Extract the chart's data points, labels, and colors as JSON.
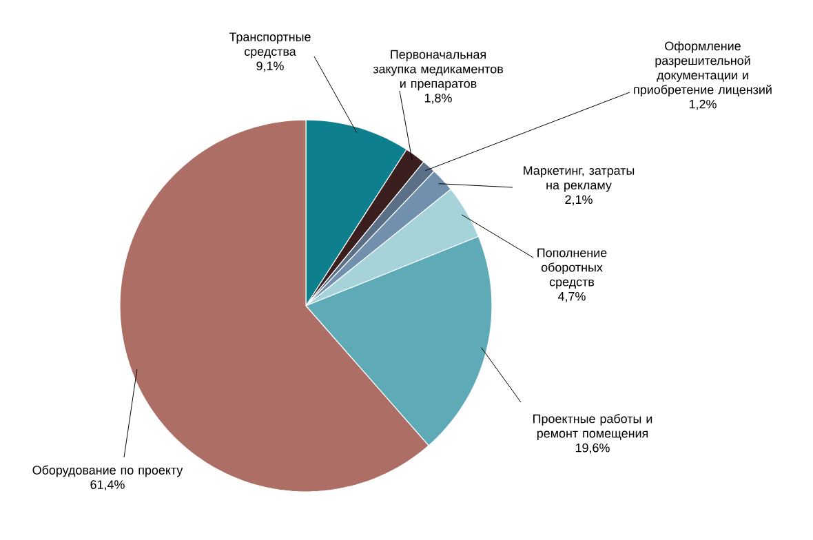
{
  "chart_data": {
    "type": "pie",
    "categories": [
      "Транспортные средства",
      "Первоначальная закупка медикаментов и препаратов",
      "Оформление разрешительной документации и приобретение лицензий",
      "Маркетинг, затраты на рекламу",
      "Пополнение оборотных средств",
      "Проектные работы и ремонт помещения",
      "Оборудование по проекту"
    ],
    "values": [
      9.1,
      1.8,
      1.2,
      2.1,
      4.7,
      19.6,
      61.4
    ],
    "value_labels": [
      "9,1%",
      "1,8%",
      "1,2%",
      "2,1%",
      "4,7%",
      "19,6%",
      "61,4%"
    ],
    "colors": [
      "#0e7f8c",
      "#3b1f1f",
      "#5b6f86",
      "#7190ad",
      "#a6d3da",
      "#5eabb7",
      "#ad6e66"
    ]
  }
}
